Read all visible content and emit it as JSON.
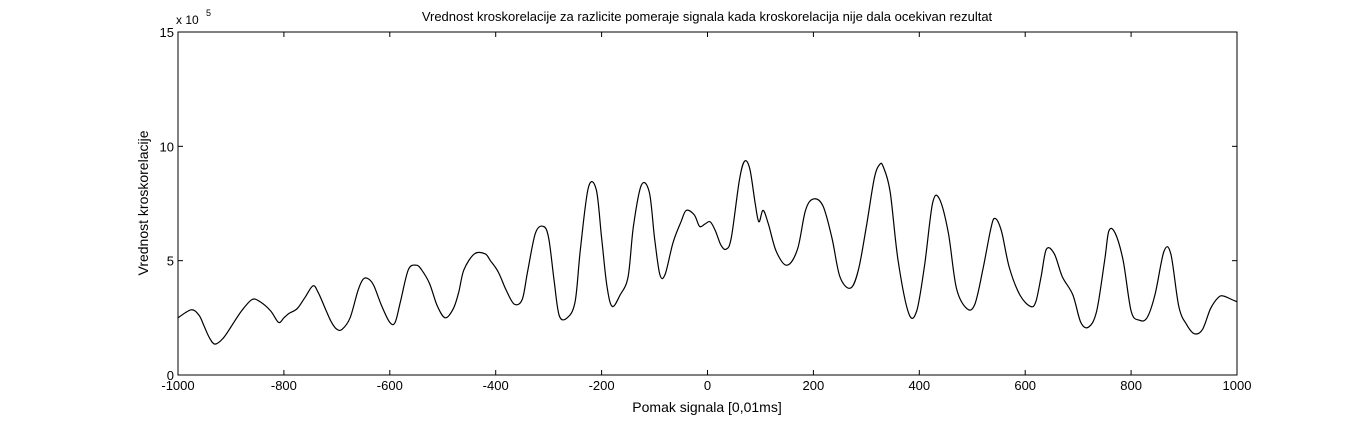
{
  "chart_data": {
    "type": "line",
    "title": "Vrednost kroskorelacije za razlicite pomeraje signala kada kroskorelacija nije dala ocekivan rezultat",
    "xlabel": "Pomak signala [0,01ms]",
    "ylabel": "Vrednost kroskorelacije",
    "y_exponent_base": "x 10",
    "y_exponent_power": "5",
    "xlim": [
      -1000,
      1000
    ],
    "ylim": [
      0,
      15
    ],
    "xticks": [
      -1000,
      -800,
      -600,
      -400,
      -200,
      0,
      200,
      400,
      600,
      800,
      1000
    ],
    "yticks": [
      0,
      5,
      10,
      15
    ],
    "grid": false,
    "line_color": "#000000",
    "series": [
      {
        "x": [
          -1000,
          -975,
          -960,
          -950,
          -940,
          -930,
          -915,
          -900,
          -880,
          -860,
          -845,
          -825,
          -810,
          -800,
          -790,
          -775,
          -760,
          -745,
          -735,
          -720,
          -710,
          -700,
          -690,
          -675,
          -660,
          -650,
          -640,
          -630,
          -615,
          -600,
          -590,
          -580,
          -565,
          -550,
          -540,
          -525,
          -510,
          -495,
          -480,
          -470,
          -460,
          -440,
          -420,
          -410,
          -395,
          -380,
          -365,
          -350,
          -340,
          -325,
          -310,
          -300,
          -290,
          -280,
          -265,
          -250,
          -240,
          -225,
          -210,
          -200,
          -190,
          -180,
          -165,
          -150,
          -140,
          -125,
          -110,
          -100,
          -90,
          -80,
          -65,
          -50,
          -40,
          -25,
          -15,
          -5,
          5,
          15,
          25,
          35,
          45,
          60,
          70,
          80,
          90,
          97,
          105,
          115,
          130,
          150,
          170,
          185,
          200,
          218,
          235,
          250,
          270,
          285,
          300,
          315,
          325,
          332,
          345,
          360,
          380,
          395,
          410,
          425,
          438,
          455,
          470,
          490,
          505,
          520,
          535,
          543,
          555,
          570,
          590,
          610,
          620,
          630,
          640,
          655,
          670,
          690,
          705,
          720,
          735,
          750,
          758,
          770,
          785,
          800,
          815,
          830,
          845,
          862,
          875,
          890,
          905,
          920,
          935,
          950,
          965,
          975,
          990,
          1000
        ],
        "y": [
          2.5,
          2.85,
          2.6,
          2.1,
          1.6,
          1.35,
          1.6,
          2.1,
          2.8,
          3.3,
          3.2,
          2.8,
          2.3,
          2.5,
          2.7,
          2.9,
          3.4,
          3.9,
          3.6,
          2.8,
          2.3,
          2.0,
          2.0,
          2.5,
          3.7,
          4.2,
          4.2,
          3.9,
          3.0,
          2.3,
          2.3,
          3.2,
          4.6,
          4.8,
          4.6,
          4.0,
          3.0,
          2.5,
          2.9,
          3.6,
          4.6,
          5.3,
          5.3,
          5.0,
          4.5,
          3.7,
          3.1,
          3.3,
          4.5,
          6.2,
          6.5,
          6.0,
          4.2,
          2.6,
          2.5,
          3.2,
          5.5,
          8.2,
          8.1,
          6.0,
          3.9,
          3.0,
          3.5,
          4.3,
          6.5,
          8.3,
          8.0,
          6.0,
          4.4,
          4.4,
          5.8,
          6.7,
          7.2,
          7.0,
          6.5,
          6.6,
          6.7,
          6.3,
          5.7,
          5.5,
          6.0,
          8.5,
          9.35,
          9.0,
          7.5,
          6.7,
          7.2,
          6.6,
          5.4,
          4.8,
          5.5,
          7.2,
          7.7,
          7.4,
          6.0,
          4.3,
          3.8,
          4.6,
          6.5,
          8.6,
          9.2,
          9.1,
          8.0,
          5.0,
          2.7,
          2.8,
          4.8,
          7.5,
          7.7,
          6.2,
          3.8,
          2.9,
          3.1,
          4.6,
          6.4,
          6.85,
          6.3,
          4.7,
          3.5,
          3.0,
          3.2,
          4.3,
          5.5,
          5.3,
          4.3,
          3.5,
          2.3,
          2.1,
          2.8,
          5.0,
          6.3,
          6.2,
          5.0,
          2.8,
          2.4,
          2.5,
          3.5,
          5.4,
          5.3,
          3.0,
          2.2,
          1.8,
          2.0,
          2.9,
          3.4,
          3.45,
          3.3,
          3.2
        ]
      }
    ]
  }
}
